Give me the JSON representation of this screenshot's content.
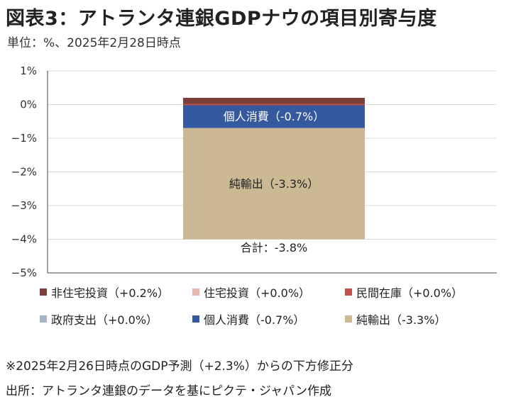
{
  "header": {
    "title": "図表3：アトランタ連銀GDPナウの項目別寄与度",
    "subtitle": "単位：%、2025年2月28日時点"
  },
  "chart_data": {
    "type": "bar",
    "stacked": true,
    "categories": [
      ""
    ],
    "series": [
      {
        "name": "非住宅投資（+0.2%）",
        "values": [
          0.2
        ],
        "color": "#7b3f3a"
      },
      {
        "name": "住宅投資（+0.0%）",
        "values": [
          0.0
        ],
        "color": "#e6b8b0"
      },
      {
        "name": "民間在庫（+0.0%）",
        "values": [
          0.0
        ],
        "color": "#c0504d"
      },
      {
        "name": "政府支出（+0.0%）",
        "values": [
          0.0
        ],
        "color": "#a6b4c8"
      },
      {
        "name": "個人消費（-0.7%）",
        "values": [
          -0.7
        ],
        "color": "#35599e"
      },
      {
        "name": "純輸出（-3.3%）",
        "values": [
          -3.3
        ],
        "color": "#cbb994"
      }
    ],
    "bar_labels": {
      "consumption": "個人消費（-0.7%）",
      "net_exports": "純輸出（-3.3%）",
      "total": "合計：-3.8%"
    },
    "total": -3.8,
    "ylim": [
      -5,
      1
    ],
    "yticks": [
      1,
      0,
      -1,
      -2,
      -3,
      -4,
      -5
    ],
    "ytick_labels": [
      "1%",
      "0%",
      "−1%",
      "−2%",
      "−3%",
      "−4%",
      "−5%"
    ],
    "grid": true,
    "legend_position": "bottom"
  },
  "footer": {
    "note": "※2025年2月26日時点のGDP予測（+2.3%）からの下方修正分",
    "source": "出所：アトランタ連銀のデータを基にピクテ・ジャパン作成"
  }
}
